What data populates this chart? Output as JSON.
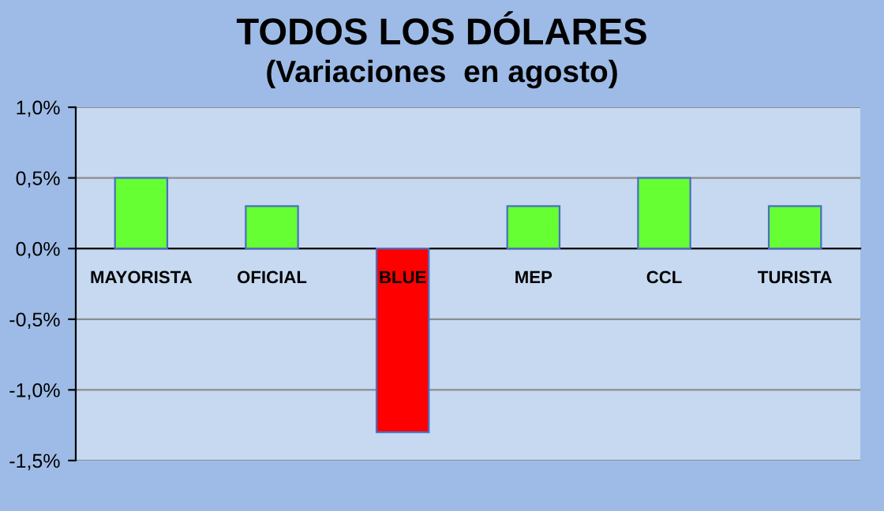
{
  "chart_data": {
    "type": "bar",
    "title": "TODOS LOS DÓLARES",
    "subtitle": "(Variaciones  en agosto)",
    "categories": [
      "MAYORISTA",
      "OFICIAL",
      "BLUE",
      "MEP",
      "CCL",
      "TURISTA"
    ],
    "values": [
      0.5,
      0.3,
      -1.3,
      0.3,
      0.5,
      0.3
    ],
    "colors": [
      "#66ff33",
      "#66ff33",
      "#ff0000",
      "#66ff33",
      "#66ff33",
      "#66ff33"
    ],
    "ylim": [
      -1.5,
      1.0
    ],
    "yticks": [
      {
        "value": -1.5,
        "label": "-1,5%"
      },
      {
        "value": -1.0,
        "label": "-1,0%"
      },
      {
        "value": -0.5,
        "label": "-0,5%"
      },
      {
        "value": 0.0,
        "label": "0,0%"
      },
      {
        "value": 0.5,
        "label": "0,5%"
      },
      {
        "value": 1.0,
        "label": "1,0%"
      }
    ],
    "grid": "y"
  }
}
